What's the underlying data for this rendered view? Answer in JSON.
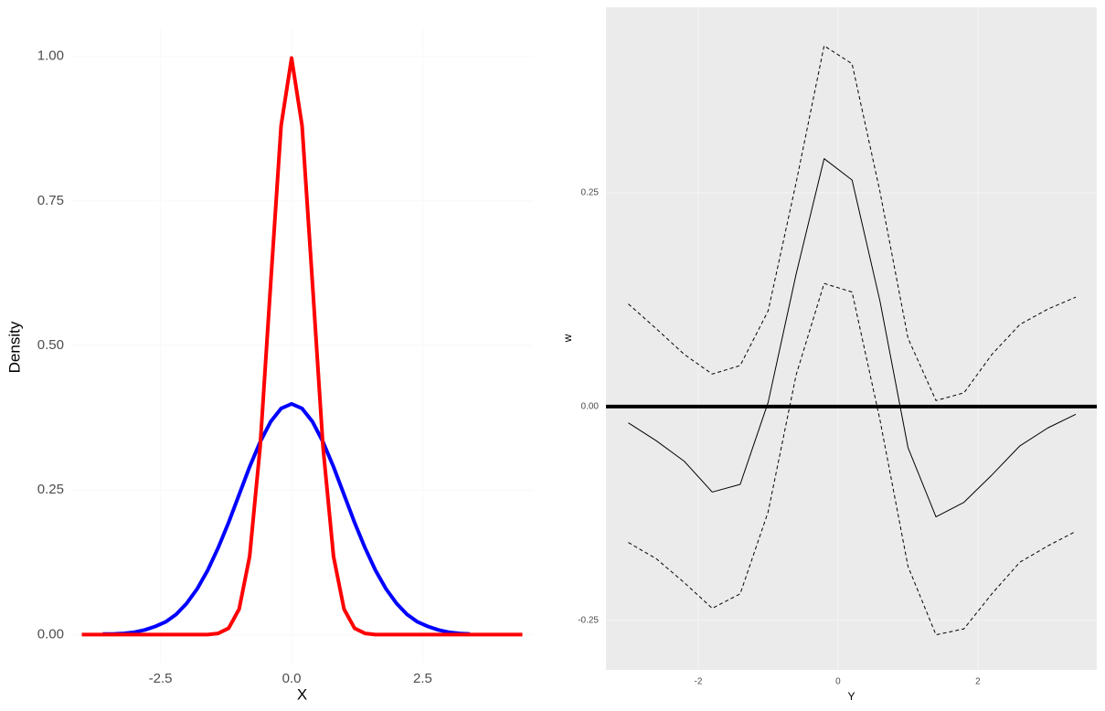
{
  "chart_data": [
    {
      "type": "line",
      "x_label": "X",
      "y_label": "Density",
      "x": [
        -4,
        -3.8,
        -3.6,
        -3.4,
        -3.2,
        -3.0,
        -2.8,
        -2.6,
        -2.4,
        -2.2,
        -2.0,
        -1.8,
        -1.6,
        -1.4,
        -1.2,
        -1.0,
        -0.8,
        -0.6,
        -0.4,
        -0.2,
        0,
        0.2,
        0.4,
        0.6,
        0.8,
        1.0,
        1.2,
        1.4,
        1.6,
        1.8,
        2.0,
        2.2,
        2.4,
        2.6,
        2.8,
        3.0,
        3.2,
        3.4,
        3.6,
        3.8,
        4.0,
        4.2,
        4.4
      ],
      "series": [
        {
          "color": "#0000ff",
          "width": 4,
          "dash": false,
          "values": [
            null,
            null,
            0.001,
            0.001,
            0.002,
            0.004,
            0.008,
            0.014,
            0.022,
            0.035,
            0.054,
            0.079,
            0.111,
            0.15,
            0.194,
            0.242,
            0.29,
            0.333,
            0.368,
            0.391,
            0.399,
            0.391,
            0.368,
            0.333,
            0.29,
            0.242,
            0.194,
            0.15,
            0.111,
            0.079,
            0.054,
            0.035,
            0.022,
            0.014,
            0.008,
            0.004,
            0.002,
            0.001,
            null,
            null,
            null,
            null,
            null
          ]
        },
        {
          "color": "#ff0000",
          "width": 4,
          "dash": false,
          "values": [
            0,
            0,
            0,
            0,
            0,
            0,
            0,
            0,
            0,
            0,
            0,
            0,
            0,
            0.002,
            0.011,
            0.044,
            0.135,
            0.324,
            0.605,
            0.88,
            0.997,
            0.88,
            0.605,
            0.324,
            0.135,
            0.044,
            0.011,
            0.002,
            0,
            0,
            0,
            0,
            0,
            0,
            0,
            0,
            0,
            0,
            0,
            0,
            0,
            0,
            0
          ]
        }
      ],
      "xlim": [
        -4.2,
        4.6
      ],
      "ylim": [
        -0.05,
        1.05
      ],
      "xticks": [
        -2.5,
        {
          "value": 0,
          "label": "0.0"
        },
        2.5
      ],
      "yticks": [
        {
          "value": 0,
          "label": "0.00"
        },
        {
          "value": 0.25,
          "label": "0.25"
        },
        {
          "value": 0.5,
          "label": "0.50"
        },
        {
          "value": 0.75,
          "label": "0.75"
        },
        {
          "value": 1,
          "label": "1.00"
        }
      ],
      "grid": true,
      "grid_color": "#fafafa",
      "background": "#ffffff"
    },
    {
      "type": "line",
      "x_label": "Y",
      "y_label": "w",
      "x": [
        -3.0,
        -2.6,
        -2.2,
        -1.8,
        -1.4,
        -1.0,
        -0.6,
        -0.2,
        0.2,
        0.6,
        1.0,
        1.4,
        1.8,
        2.2,
        2.6,
        3.0,
        3.4
      ],
      "series": [
        {
          "color": "#000000",
          "width": 1,
          "dash": false,
          "values": [
            -0.019,
            -0.04,
            -0.064,
            -0.1,
            -0.091,
            0.005,
            0.155,
            0.29,
            0.265,
            0.123,
            -0.048,
            -0.129,
            -0.112,
            -0.08,
            -0.046,
            -0.025,
            -0.009
          ]
        },
        {
          "color": "#000000",
          "width": 1,
          "dash": true,
          "values": [
            0.12,
            0.091,
            0.061,
            0.038,
            0.048,
            0.112,
            0.262,
            0.422,
            0.401,
            0.251,
            0.08,
            0.007,
            0.016,
            0.061,
            0.096,
            0.114,
            0.128
          ]
        },
        {
          "color": "#000000",
          "width": 1,
          "dash": true,
          "values": [
            -0.159,
            -0.178,
            -0.206,
            -0.236,
            -0.219,
            -0.123,
            0.037,
            0.144,
            0.134,
            -0.016,
            -0.187,
            -0.267,
            -0.26,
            -0.219,
            -0.182,
            -0.163,
            -0.146
          ]
        }
      ],
      "hline": 0,
      "xlim": [
        -3.32,
        3.7
      ],
      "ylim": [
        -0.308,
        0.467
      ],
      "xticks": [
        -2,
        0,
        2
      ],
      "yticks": [
        {
          "value": -0.25,
          "label": "-0.25"
        },
        {
          "value": 0,
          "label": "0.00"
        },
        {
          "value": 0.25,
          "label": "0.25"
        }
      ],
      "grid": true,
      "grid_color": "#f2f2f2",
      "background": "#ebebeb"
    }
  ]
}
